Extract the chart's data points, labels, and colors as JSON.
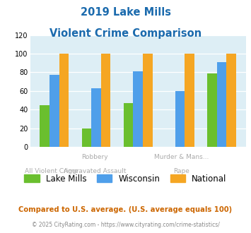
{
  "title_line1": "2019 Lake Mills",
  "title_line2": "Violent Crime Comparison",
  "top_labels": [
    "",
    "Robbery",
    "",
    "Murder & Mans...",
    ""
  ],
  "bottom_labels": [
    "All Violent Crime",
    "Aggravated Assault",
    "",
    "Rape",
    ""
  ],
  "lake_mills": [
    45,
    20,
    47,
    0,
    79
  ],
  "wisconsin": [
    77,
    63,
    81,
    60,
    91
  ],
  "national": [
    100,
    100,
    100,
    100,
    100
  ],
  "colors": {
    "lake_mills": "#6abf2e",
    "wisconsin": "#4f9fea",
    "national": "#f5a623"
  },
  "ylim": [
    0,
    120
  ],
  "yticks": [
    0,
    20,
    40,
    60,
    80,
    100,
    120
  ],
  "plot_bg": "#ddeef5",
  "title_color": "#1a6aad",
  "legend_labels": [
    "Lake Mills",
    "Wisconsin",
    "National"
  ],
  "footnote1": "Compared to U.S. average. (U.S. average equals 100)",
  "footnote2": "© 2025 CityRating.com - https://www.cityrating.com/crime-statistics/",
  "footnote1_color": "#cc6600",
  "footnote2_color": "#888888",
  "xlabel_color": "#aaaaaa"
}
